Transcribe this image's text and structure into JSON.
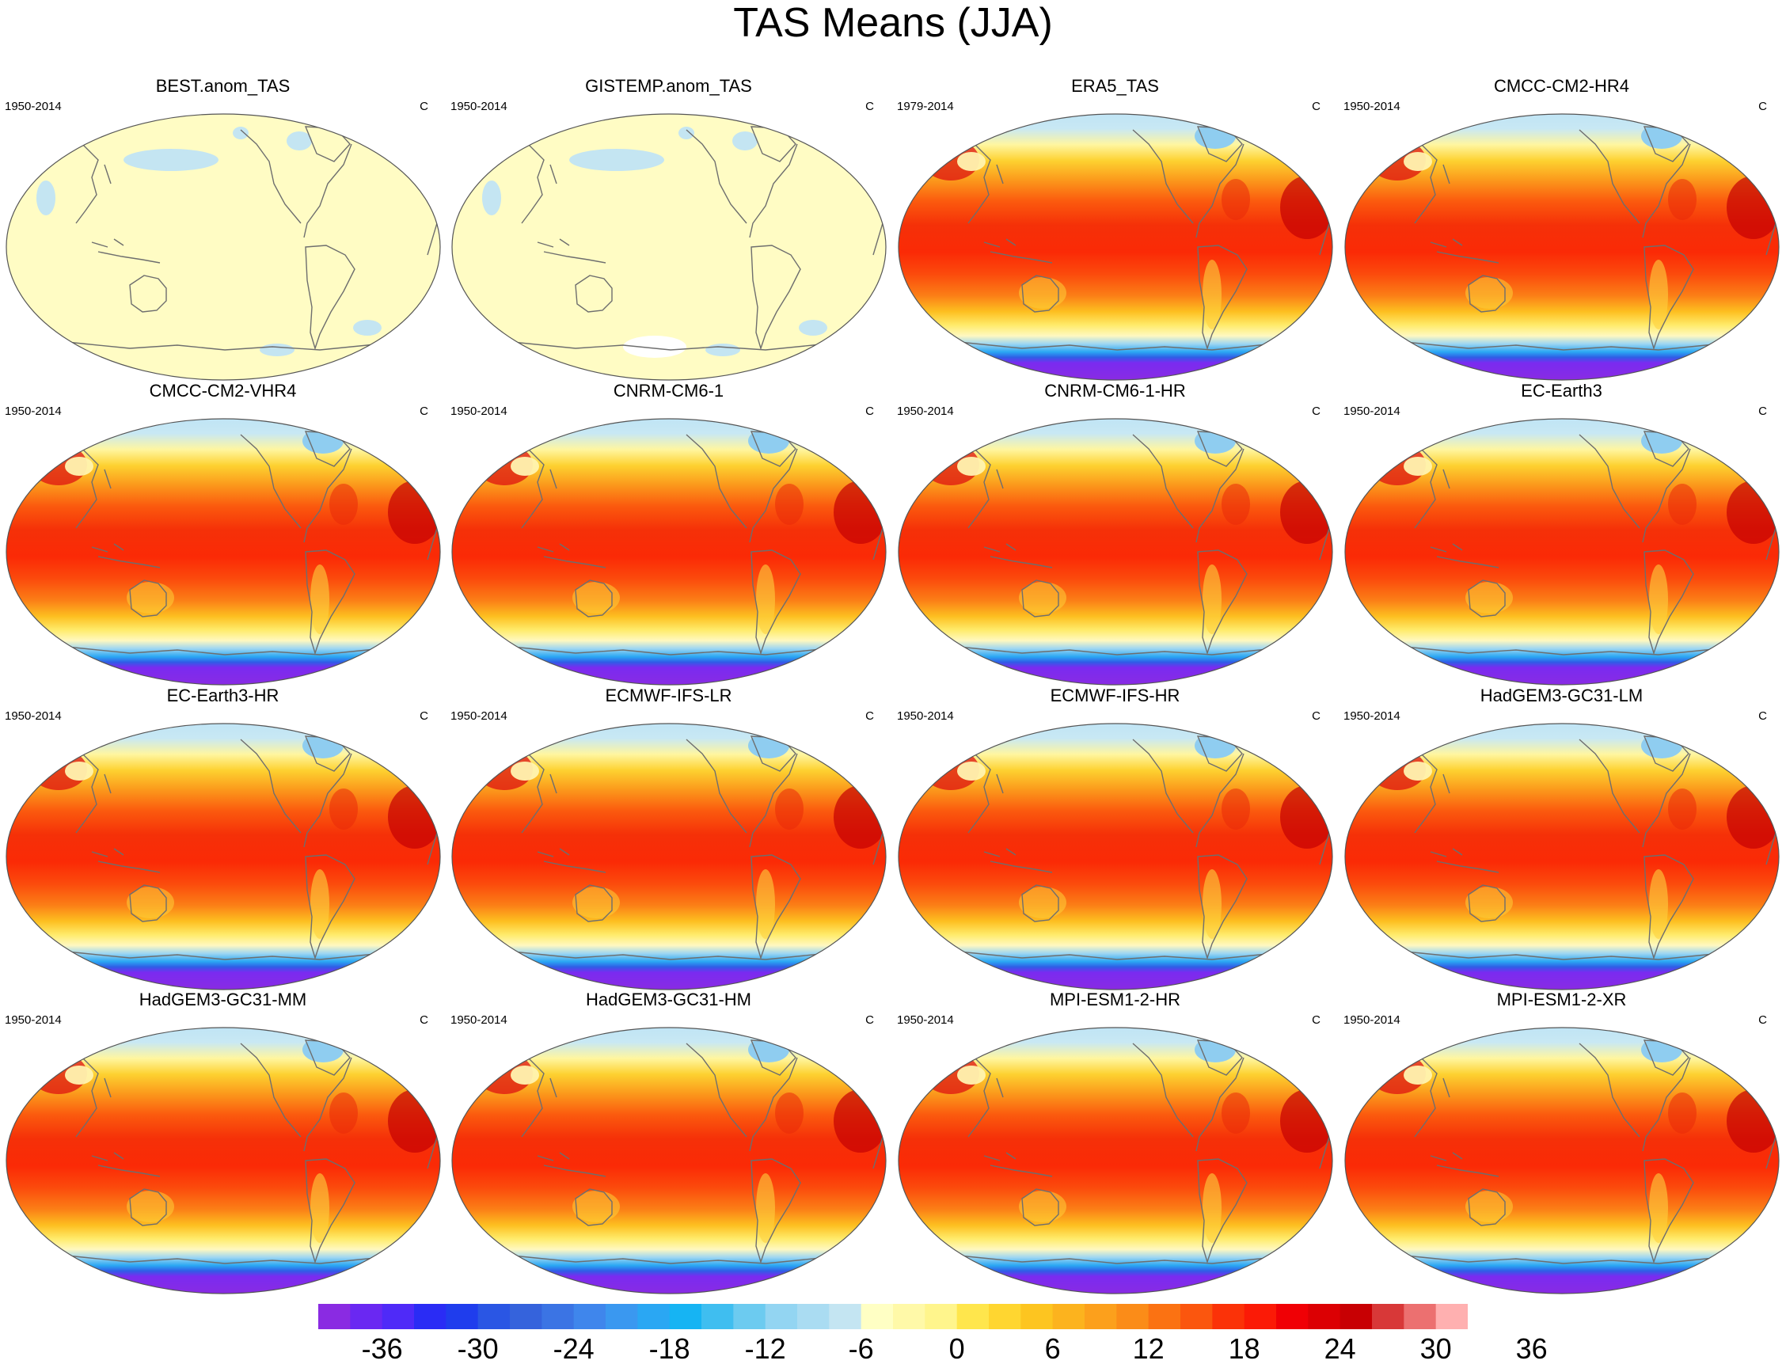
{
  "title": "TAS Means (JJA)",
  "panels": [
    {
      "title": "BEST.anom_TAS",
      "period": "1950-2014",
      "units": "C",
      "style": "anomaly",
      "white_patch": false
    },
    {
      "title": "GISTEMP.anom_TAS",
      "period": "1950-2014",
      "units": "C",
      "style": "anomaly",
      "white_patch": true
    },
    {
      "title": "ERA5_TAS",
      "period": "1979-2014",
      "units": "C",
      "style": "climatology"
    },
    {
      "title": "CMCC-CM2-HR4",
      "period": "1950-2014",
      "units": "C",
      "style": "climatology"
    },
    {
      "title": "CMCC-CM2-VHR4",
      "period": "1950-2014",
      "units": "C",
      "style": "climatology"
    },
    {
      "title": "CNRM-CM6-1",
      "period": "1950-2014",
      "units": "C",
      "style": "climatology"
    },
    {
      "title": "CNRM-CM6-1-HR",
      "period": "1950-2014",
      "units": "C",
      "style": "climatology"
    },
    {
      "title": "EC-Earth3",
      "period": "1950-2014",
      "units": "C",
      "style": "climatology"
    },
    {
      "title": "EC-Earth3-HR",
      "period": "1950-2014",
      "units": "C",
      "style": "climatology"
    },
    {
      "title": "ECMWF-IFS-LR",
      "period": "1950-2014",
      "units": "C",
      "style": "climatology"
    },
    {
      "title": "ECMWF-IFS-HR",
      "period": "1950-2014",
      "units": "C",
      "style": "climatology"
    },
    {
      "title": "HadGEM3-GC31-LM",
      "period": "1950-2014",
      "units": "C",
      "style": "climatology"
    },
    {
      "title": "HadGEM3-GC31-MM",
      "period": "1950-2014",
      "units": "C",
      "style": "climatology"
    },
    {
      "title": "HadGEM3-GC31-HM",
      "period": "1950-2014",
      "units": "C",
      "style": "climatology"
    },
    {
      "title": "MPI-ESM1-2-HR",
      "period": "1950-2014",
      "units": "C",
      "style": "climatology"
    },
    {
      "title": "MPI-ESM1-2-XR",
      "period": "1950-2014",
      "units": "C",
      "style": "climatology"
    }
  ],
  "colorbar": {
    "colors": [
      "#8a2be2",
      "#6a28f2",
      "#4f2af8",
      "#2a2cf5",
      "#1f3ded",
      "#2a56e4",
      "#3563dc",
      "#3b74e4",
      "#3f86ec",
      "#3a98f0",
      "#2aa7f3",
      "#16b4f3",
      "#3fbef0",
      "#6ccbf0",
      "#93d5f2",
      "#aadcf2",
      "#c4e5f2",
      "#ffffc4",
      "#fff9a8",
      "#fff58c",
      "#ffe64c",
      "#ffd630",
      "#fdc520",
      "#fcb31e",
      "#fca01c",
      "#fb8c18",
      "#fb7212",
      "#fb560e",
      "#fb3208",
      "#fb1a06",
      "#f00005",
      "#dc0003",
      "#c80003",
      "#d83838",
      "#ec7070",
      "#ffb0b0"
    ],
    "labels": [
      "-36",
      "-30",
      "-24",
      "-18",
      "-12",
      "-6",
      "0",
      "6",
      "12",
      "18",
      "24",
      "30",
      "36"
    ]
  }
}
